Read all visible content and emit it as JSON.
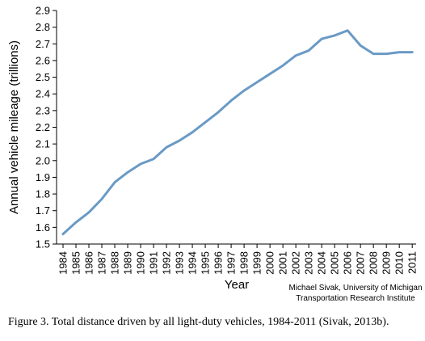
{
  "chart_data": {
    "type": "line",
    "title": "",
    "xlabel": "Year",
    "ylabel": "Annual vehicle mileage (trillions)",
    "x": [
      "1984",
      "1985",
      "1986",
      "1987",
      "1988",
      "1989",
      "1990",
      "1991",
      "1992",
      "1993",
      "1994",
      "1995",
      "1996",
      "1997",
      "1998",
      "1999",
      "2000",
      "2001",
      "2002",
      "2003",
      "2004",
      "2005",
      "2006",
      "2007",
      "2008",
      "2009",
      "2010",
      "2011"
    ],
    "series": [
      {
        "values": [
          1.56,
          1.63,
          1.69,
          1.77,
          1.87,
          1.93,
          1.98,
          2.01,
          2.08,
          2.12,
          2.17,
          2.23,
          2.29,
          2.36,
          2.42,
          2.47,
          2.52,
          2.57,
          2.63,
          2.66,
          2.73,
          2.75,
          2.78,
          2.69,
          2.64,
          2.64,
          2.65,
          2.65
        ],
        "color": "#6a9ac5"
      }
    ],
    "ylim": [
      1.5,
      2.9
    ],
    "yticks": [
      "1.5",
      "1.6",
      "1.7",
      "1.8",
      "1.9",
      "2.0",
      "2.1",
      "2.2",
      "2.3",
      "2.4",
      "2.5",
      "2.6",
      "2.7",
      "2.8",
      "2.9"
    ],
    "grid": false,
    "legend": "none"
  },
  "credit": {
    "line1": "Michael Sivak, University of Michigan",
    "line2": "Transportation Research Institute"
  },
  "caption": "Figure 3.  Total distance driven by all light-duty vehicles, 1984-2011 (Sivak, 2013b)."
}
